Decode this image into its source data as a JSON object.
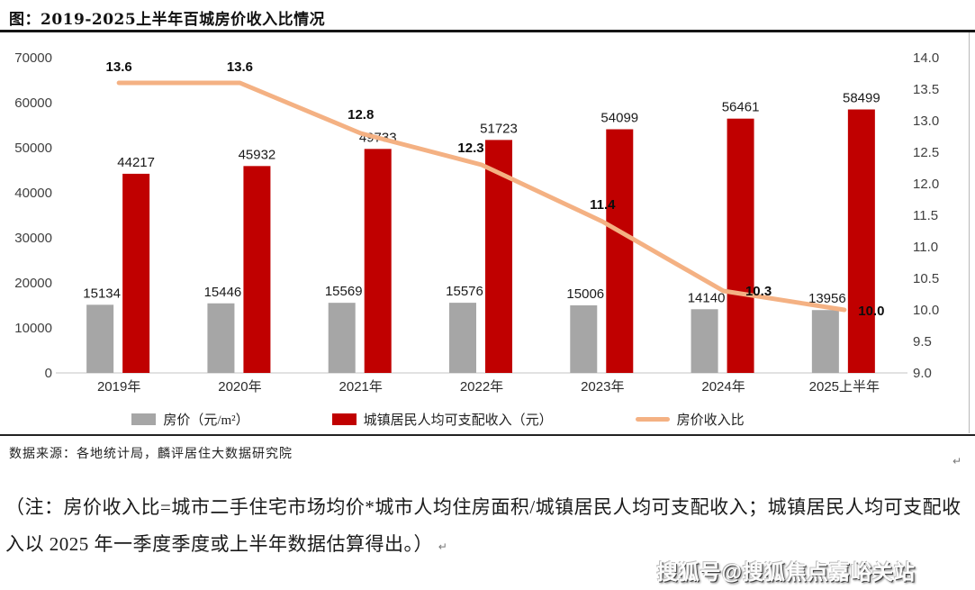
{
  "title": "图：2019-2025上半年百城房价收入比情况",
  "source_line": "数据来源：各地统计局，麟评居住大数据研究院",
  "note": "（注：房价收入比=城市二手住宅市场均价*城市人均住房面积/城镇居民人均可支配收入；城镇居民人均可支配收入以 2025 年一季度季度或上半年数据估算得出。）",
  "return_mark": "↵",
  "watermark": "搜狐号@搜狐焦点嘉峪关站",
  "colors": {
    "price_bar": "#A6A6A6",
    "income_bar": "#C00000",
    "ratio_line": "#F4B183",
    "axis_line": "#D9D9D9"
  },
  "chart_data": {
    "type": "bar",
    "categories": [
      "2019年",
      "2020年",
      "2021年",
      "2022年",
      "2023年",
      "2024年",
      "2025上半年"
    ],
    "series": [
      {
        "name": "房价（元/m²）",
        "type": "bar",
        "axis": "left",
        "color_key": "price_bar",
        "values": [
          15134,
          15446,
          15569,
          15576,
          15006,
          14140,
          13956
        ]
      },
      {
        "name": "城镇居民人均可支配收入（元）",
        "type": "bar",
        "axis": "left",
        "color_key": "income_bar",
        "values": [
          44217,
          45932,
          49733,
          51723,
          54099,
          56461,
          58499
        ]
      },
      {
        "name": "房价收入比",
        "type": "line",
        "axis": "right",
        "color_key": "ratio_line",
        "values": [
          13.6,
          13.6,
          12.8,
          12.3,
          11.4,
          10.3,
          10.0
        ]
      }
    ],
    "title": "2019-2025上半年百城房价收入比情况",
    "xlabel": "",
    "ylabel": "",
    "left_axis": {
      "min": 0,
      "max": 70000,
      "step": 10000
    },
    "right_axis": {
      "min": 9.0,
      "max": 14.0,
      "step": 0.5
    },
    "grid": false,
    "legend_position": "bottom"
  }
}
